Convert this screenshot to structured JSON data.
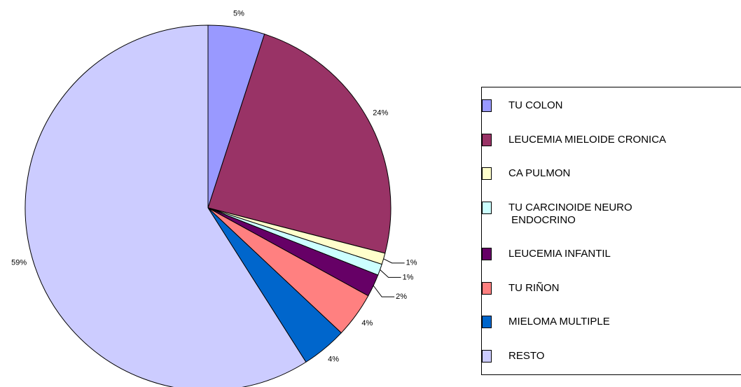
{
  "chart_data": {
    "type": "pie",
    "categories": [
      "TU COLON",
      "LEUCEMIA MIELOIDE CRONICA",
      "CA PULMON",
      "TU CARCINOIDE NEURO\n ENDOCRINO",
      "LEUCEMIA INFANTIL",
      "TU RIÑON",
      "MIELOMA MULTIPLE",
      "RESTO"
    ],
    "values": [
      5,
      24,
      1,
      1,
      2,
      4,
      4,
      59
    ],
    "value_labels": [
      "5%",
      "24%",
      "1%",
      "1%",
      "2%",
      "4%",
      "4%",
      "59%"
    ],
    "colors": [
      "#9999ff",
      "#993366",
      "#ffffcc",
      "#ccffff",
      "#660066",
      "#ff8080",
      "#0066cc",
      "#ccccff"
    ],
    "legend": "right"
  }
}
